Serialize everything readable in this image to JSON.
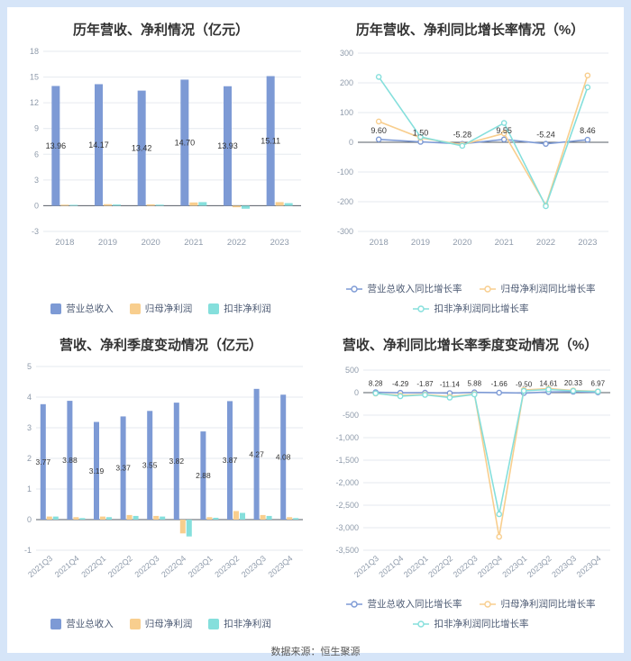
{
  "footer": {
    "source": "数据来源：恒生聚源"
  },
  "palette": {
    "revenue": "#7D9AD5",
    "net_profit": "#F8CE8E",
    "non_gaap_profit": "#85DFDC",
    "zero_axis": "#565d66",
    "grid_line": "#e6eaef",
    "tick_text": "#8f9bab",
    "value_label": "#333333"
  },
  "chart_data": [
    {
      "type": "bar",
      "title": "历年营收、净利情况（亿元）",
      "ylabel": "",
      "xlabel": "",
      "categories": [
        "2018",
        "2019",
        "2020",
        "2021",
        "2022",
        "2023"
      ],
      "ylim": [
        -3,
        18
      ],
      "yticks": [
        -3,
        0,
        3,
        6,
        9,
        12,
        15,
        18
      ],
      "ytick_labels": [
        "-3",
        "0",
        "3",
        "6",
        "9",
        "12",
        "15",
        "18"
      ],
      "legend_position": "bottom",
      "series": [
        {
          "name": "营业总收入",
          "color": "#7D9AD5",
          "values": [
            13.96,
            14.17,
            13.42,
            14.7,
            13.93,
            15.11
          ],
          "labels": [
            "13.96",
            "14.17",
            "13.42",
            "14.70",
            "13.93",
            "15.11"
          ]
        },
        {
          "name": "归母净利润",
          "color": "#F8CE8E",
          "values": [
            0.12,
            0.18,
            0.16,
            0.38,
            -0.18,
            0.42
          ]
        },
        {
          "name": "扣非净利润",
          "color": "#85DFDC",
          "values": [
            0.1,
            0.14,
            0.12,
            0.42,
            -0.35,
            0.3
          ]
        }
      ]
    },
    {
      "type": "line",
      "title": "历年营收、净利同比增长率情况（%）",
      "ylabel": "",
      "xlabel": "",
      "categories": [
        "2018",
        "2019",
        "2020",
        "2021",
        "2022",
        "2023"
      ],
      "ylim": [
        -300,
        300
      ],
      "yticks": [
        -300,
        -200,
        -100,
        0,
        100,
        200,
        300
      ],
      "ytick_labels": [
        "-300",
        "-200",
        "-100",
        "0",
        "100",
        "200",
        "300"
      ],
      "legend_position": "bottom",
      "series": [
        {
          "name": "营业总收入同比增长率",
          "color": "#7D9AD5",
          "values": [
            9.6,
            1.5,
            -5.28,
            9.55,
            -5.24,
            8.46
          ],
          "labels": [
            "9.60",
            "1.50",
            "-5.28",
            "9.55",
            "-5.24",
            "8.46"
          ]
        },
        {
          "name": "归母净利润同比增长率",
          "color": "#F8CE8E",
          "values": [
            70,
            15,
            -8,
            30,
            -212,
            225
          ]
        },
        {
          "name": "扣非净利润同比增长率",
          "color": "#85DFDC",
          "values": [
            220,
            18,
            -12,
            65,
            -215,
            185
          ]
        }
      ]
    },
    {
      "type": "bar",
      "title": "营收、净利季度变动情况（亿元）",
      "ylabel": "",
      "xlabel": "",
      "categories": [
        "2021Q3",
        "2021Q4",
        "2022Q1",
        "2022Q2",
        "2022Q3",
        "2022Q4",
        "2023Q1",
        "2023Q2",
        "2023Q3",
        "2023Q4"
      ],
      "ylim": [
        -1,
        5
      ],
      "yticks": [
        -1,
        0,
        1,
        2,
        3,
        4,
        5
      ],
      "ytick_labels": [
        "-1",
        "0",
        "1",
        "2",
        "3",
        "4",
        "5"
      ],
      "legend_position": "bottom",
      "series": [
        {
          "name": "营业总收入",
          "color": "#7D9AD5",
          "values": [
            3.77,
            3.88,
            3.19,
            3.37,
            3.55,
            3.82,
            2.88,
            3.87,
            4.27,
            4.08
          ],
          "labels": [
            "3.77",
            "3.88",
            "3.19",
            "3.37",
            "3.55",
            "3.82",
            "2.88",
            "3.87",
            "4.27",
            "4.08"
          ]
        },
        {
          "name": "归母净利润",
          "color": "#F8CE8E",
          "values": [
            0.1,
            0.08,
            0.1,
            0.15,
            0.12,
            -0.45,
            0.08,
            0.28,
            0.15,
            0.08
          ]
        },
        {
          "name": "扣非净利润",
          "color": "#85DFDC",
          "values": [
            0.1,
            0.05,
            0.08,
            0.12,
            0.1,
            -0.55,
            0.06,
            0.22,
            0.12,
            0.05
          ]
        }
      ]
    },
    {
      "type": "line",
      "title": "营收、净利同比增长率季度变动情况（%）",
      "ylabel": "",
      "xlabel": "",
      "categories": [
        "2021Q3",
        "2021Q4",
        "2022Q1",
        "2022Q2",
        "2022Q3",
        "2022Q4",
        "2023Q1",
        "2023Q2",
        "2023Q3",
        "2023Q4"
      ],
      "ylim": [
        -3500,
        500
      ],
      "yticks": [
        -3500,
        -3000,
        -2500,
        -2000,
        -1500,
        -1000,
        -500,
        0,
        500
      ],
      "ytick_labels": [
        "-3,500",
        "-3,000",
        "-2,500",
        "-2,000",
        "-1,500",
        "-1,000",
        "-500",
        "0",
        "500"
      ],
      "legend_position": "bottom",
      "series": [
        {
          "name": "营业总收入同比增长率",
          "color": "#7D9AD5",
          "values": [
            8.28,
            -4.29,
            -1.87,
            -11.14,
            5.88,
            -1.66,
            -9.5,
            14.61,
            20.33,
            6.97
          ],
          "labels": [
            "8.28",
            "-4.29",
            "-1.87",
            "-11.14",
            "5.88",
            "-1.66",
            "-9.50",
            "14.61",
            "20.33",
            "6.97"
          ]
        },
        {
          "name": "归母净利润同比增长率",
          "color": "#F8CE8E",
          "values": [
            -20,
            -60,
            -40,
            -90,
            -30,
            -3200,
            60,
            90,
            50,
            30
          ]
        },
        {
          "name": "扣非净利润同比增长率",
          "color": "#85DFDC",
          "values": [
            -15,
            -80,
            -50,
            -110,
            -40,
            -2700,
            40,
            70,
            40,
            25
          ]
        }
      ]
    }
  ]
}
